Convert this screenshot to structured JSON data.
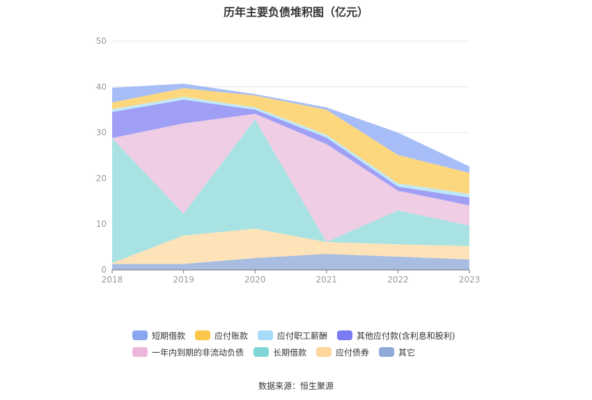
{
  "title": "历年主要负债堆积图（亿元）",
  "source": "数据来源：恒生聚源",
  "chart_data": {
    "type": "area",
    "stacked": true,
    "title": "历年主要负债堆积图（亿元）",
    "x": [
      "2018",
      "2019",
      "2020",
      "2021",
      "2022",
      "2023"
    ],
    "ylim": [
      0,
      50
    ],
    "yticks": [
      0,
      10,
      20,
      30,
      40,
      50
    ],
    "grid": true,
    "legend_position": "bottom",
    "series": [
      {
        "name": "其它",
        "color": "#a9bde2",
        "values": [
          1.3,
          1.3,
          2.6,
          3.5,
          2.9,
          2.3
        ]
      },
      {
        "name": "应付债券",
        "color": "#fde3b7",
        "values": [
          0.2,
          6.2,
          6.4,
          2.6,
          2.7,
          2.9
        ]
      },
      {
        "name": "长期借款",
        "color": "#a8e2e2",
        "values": [
          27.3,
          4.8,
          23.9,
          0.0,
          7.4,
          4.5
        ]
      },
      {
        "name": "一年内到期的非流动负债",
        "color": "#efcde4",
        "values": [
          0.0,
          19.7,
          1.2,
          21.4,
          4.3,
          4.4
        ]
      },
      {
        "name": "其他应付款(含利息和股利)",
        "color": "#9f9ff5",
        "values": [
          5.7,
          5.2,
          0.9,
          1.4,
          0.9,
          1.7
        ]
      },
      {
        "name": "应付职工薪酬",
        "color": "#bfe9f9",
        "values": [
          0.6,
          0.6,
          0.5,
          0.6,
          0.7,
          0.8
        ]
      },
      {
        "name": "应付账款",
        "color": "#fdd77e",
        "values": [
          1.5,
          1.9,
          2.6,
          5.5,
          6.2,
          4.6
        ]
      },
      {
        "name": "短期借款",
        "color": "#a6bdf8",
        "values": [
          3.2,
          1.0,
          0.3,
          0.5,
          4.9,
          1.4
        ]
      }
    ],
    "legend_rows": [
      [
        {
          "name": "短期借款",
          "color": "#8aa6f1"
        },
        {
          "name": "应付账款",
          "color": "#fbc64a"
        },
        {
          "name": "应付职工薪酬",
          "color": "#a6dcf7"
        },
        {
          "name": "其他应付款(含利息和股利)",
          "color": "#7b7cf1"
        }
      ],
      [
        {
          "name": "一年内到期的非流动负债",
          "color": "#eab7d9"
        },
        {
          "name": "长期借款",
          "color": "#7fd6d4"
        },
        {
          "name": "应付债券",
          "color": "#fdd79b"
        },
        {
          "name": "其它",
          "color": "#8fabd8"
        }
      ]
    ]
  }
}
